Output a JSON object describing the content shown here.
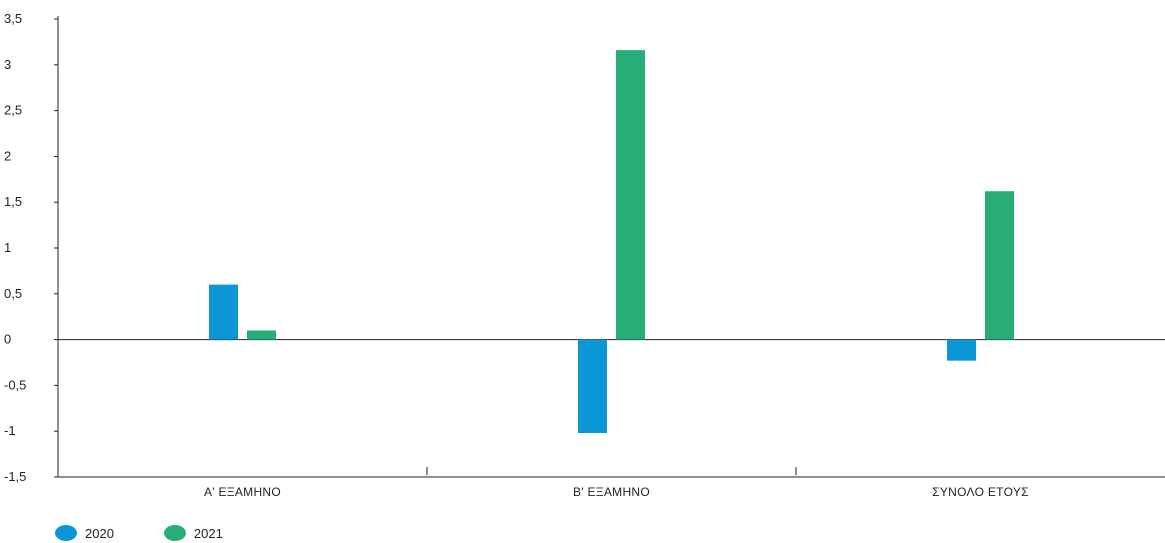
{
  "chart_data": {
    "type": "bar",
    "categories": [
      "Α' ΕΞΑΜΗΝΟ",
      "Β' ΕΞΑΜΗΝΟ",
      "ΣΥΝΟΛΟ ΕΤΟΥΣ"
    ],
    "series": [
      {
        "name": "2020",
        "color": "#0b96d6",
        "values": [
          0.6,
          -1.02,
          -0.23
        ]
      },
      {
        "name": "2021",
        "color": "#27ae78",
        "values": [
          0.1,
          3.16,
          1.62
        ]
      }
    ],
    "yticks": [
      "-1,5",
      "-1",
      "-0,5",
      "0",
      "0,5",
      "1",
      "1,5",
      "2",
      "2,5",
      "3",
      "3,5"
    ],
    "ylim": [
      -1.5,
      3.5
    ],
    "legend_position": "bottom-left",
    "grid": false
  }
}
